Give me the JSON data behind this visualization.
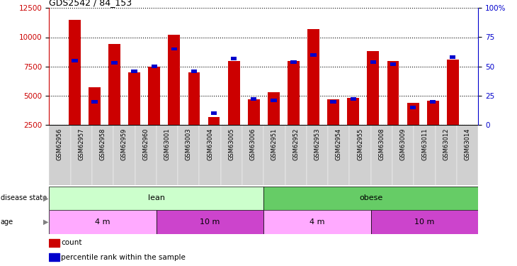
{
  "title": "GDS2542 / 84_153",
  "samples": [
    "GSM62956",
    "GSM62957",
    "GSM62958",
    "GSM62959",
    "GSM62960",
    "GSM63001",
    "GSM63003",
    "GSM63004",
    "GSM63005",
    "GSM63006",
    "GSM62951",
    "GSM62952",
    "GSM62953",
    "GSM62954",
    "GSM62955",
    "GSM63008",
    "GSM63009",
    "GSM63011",
    "GSM63012",
    "GSM63014"
  ],
  "counts": [
    11500,
    5700,
    9400,
    7000,
    7500,
    10200,
    7000,
    3200,
    8000,
    4700,
    5300,
    8000,
    10700,
    4700,
    4800,
    8800,
    8000,
    4400,
    4600,
    8100
  ],
  "percentiles": [
    55,
    20,
    53,
    46,
    50,
    65,
    46,
    10,
    57,
    22,
    21,
    54,
    60,
    20,
    22,
    54,
    52,
    15,
    20,
    58
  ],
  "bar_color": "#cc0000",
  "pct_color": "#0000cc",
  "ylim_left": [
    2500,
    12500
  ],
  "ylim_right": [
    0,
    100
  ],
  "yticks_left": [
    2500,
    5000,
    7500,
    10000,
    12500
  ],
  "yticks_right": [
    0,
    25,
    50,
    75,
    100
  ],
  "disease_state_lean_color": "#ccffcc",
  "disease_state_obese_color": "#66cc66",
  "age_4m_color": "#ffaaff",
  "age_10m_color": "#cc44cc",
  "lean_indices": [
    0,
    9
  ],
  "obese_indices": [
    10,
    19
  ],
  "age_4m_lean_indices": [
    0,
    4
  ],
  "age_10m_lean_indices": [
    5,
    9
  ],
  "age_4m_obese_indices": [
    10,
    14
  ],
  "age_10m_obese_indices": [
    15,
    19
  ]
}
